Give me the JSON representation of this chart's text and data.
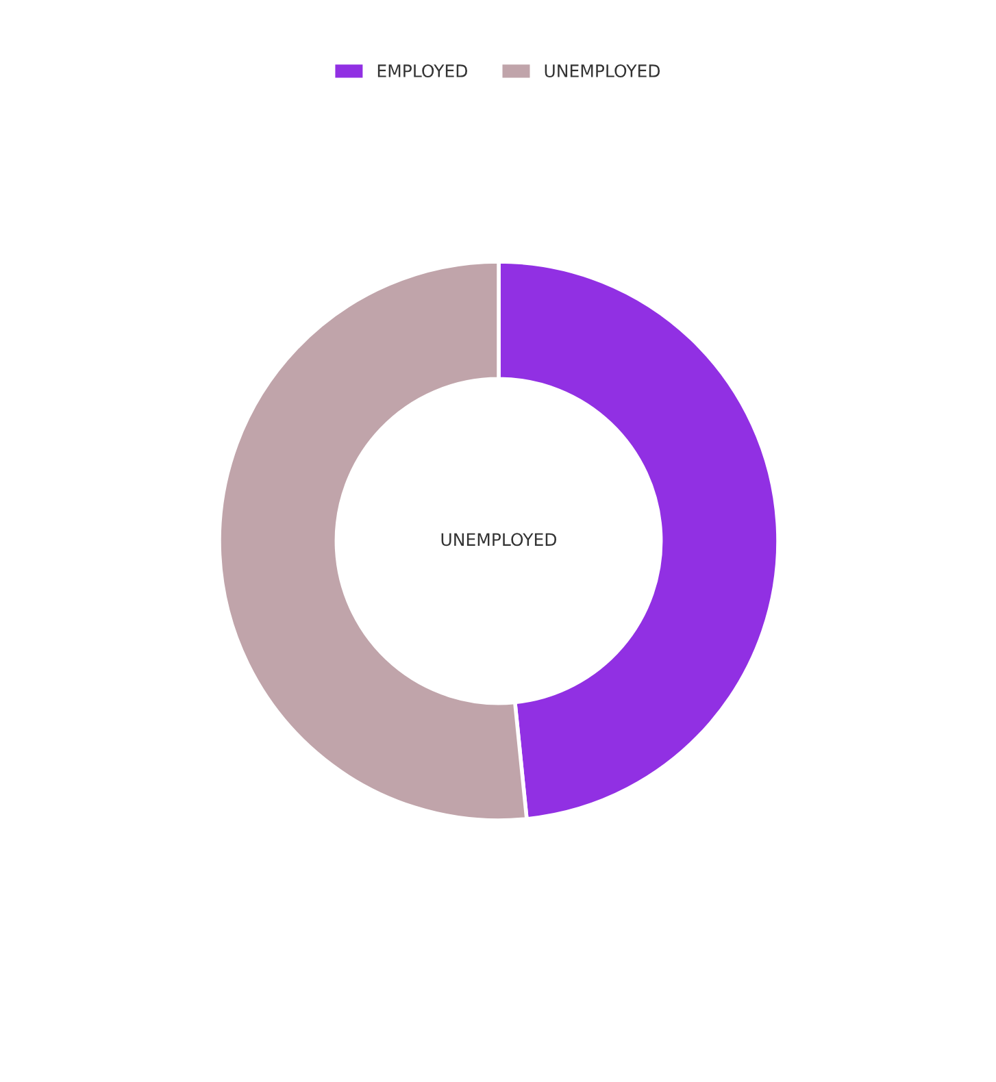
{
  "chart_data": {
    "type": "donut",
    "categories": [
      "EMPLOYED",
      "UNEMPLOYED"
    ],
    "values": [
      48.4,
      51.6
    ],
    "colors": [
      "#9130e3",
      "#c0a4aa"
    ],
    "legend": "top",
    "annotations": [
      "UNEMPLOYED"
    ]
  }
}
